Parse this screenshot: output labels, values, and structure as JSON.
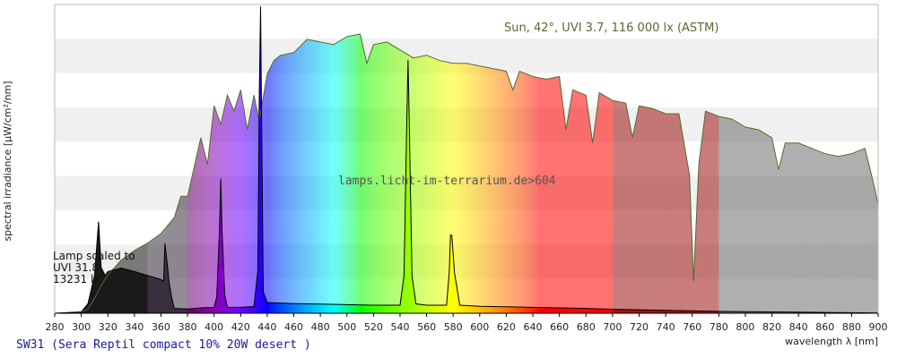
{
  "chart_data": {
    "type": "area",
    "xlabel": "wavelength λ [nm]",
    "ylabel": "spectral irradiance [µW/cm²/nm]",
    "xlim": [
      280,
      900
    ],
    "x_ticks": [
      280,
      300,
      320,
      340,
      360,
      380,
      400,
      420,
      440,
      460,
      480,
      500,
      520,
      540,
      560,
      580,
      600,
      620,
      640,
      660,
      680,
      700,
      720,
      740,
      760,
      780,
      800,
      820,
      840,
      860,
      880,
      900
    ],
    "y_axis_tick_labels": "none",
    "grid": "horizontal bands",
    "sun_label": "Sun, 42°, UVI 3.7, 116 000 lx (ASTM)",
    "sun_color": "#556b2f",
    "watermark": "lamps.licht-im-terrarium.de>604",
    "lamp_note": [
      "Lamp scaled to",
      "UVI 31.8",
      "13231 lx"
    ],
    "footer_title": "SW31 (Sera Reptil compact 10% 20W desert )",
    "footer_color": "#1a1aa0",
    "series": [
      {
        "name": "Sun, 42°, UVI 3.7, 116 000 lx (ASTM)",
        "role": "reference",
        "x": [
          280,
          300,
          305,
          310,
          315,
          320,
          330,
          340,
          350,
          360,
          370,
          375,
          380,
          390,
          395,
          400,
          405,
          410,
          415,
          420,
          425,
          430,
          434,
          440,
          445,
          450,
          460,
          470,
          480,
          490,
          500,
          510,
          515,
          520,
          530,
          540,
          550,
          560,
          570,
          580,
          590,
          600,
          610,
          620,
          625,
          630,
          640,
          650,
          660,
          665,
          670,
          680,
          685,
          690,
          700,
          710,
          715,
          720,
          730,
          740,
          750,
          758,
          761,
          765,
          770,
          780,
          790,
          800,
          810,
          820,
          825,
          830,
          840,
          850,
          860,
          870,
          880,
          890,
          895,
          900
        ],
        "values": [
          0,
          2,
          8,
          28,
          52,
          72,
          100,
          118,
          132,
          150,
          180,
          220,
          220,
          330,
          280,
          390,
          355,
          410,
          380,
          420,
          345,
          410,
          362,
          450,
          475,
          485,
          490,
          515,
          510,
          505,
          520,
          525,
          470,
          505,
          510,
          495,
          480,
          485,
          475,
          470,
          470,
          465,
          460,
          455,
          420,
          455,
          445,
          440,
          445,
          345,
          420,
          410,
          320,
          415,
          400,
          395,
          330,
          390,
          385,
          375,
          375,
          260,
          60,
          280,
          380,
          370,
          365,
          350,
          345,
          330,
          270,
          320,
          320,
          310,
          300,
          295,
          300,
          310,
          260,
          205
        ]
      },
      {
        "name": "SW31 (Sera Reptil compact 10% 20W desert )",
        "role": "lamp",
        "x": [
          280,
          300,
          305,
          310,
          313,
          315,
          318,
          320,
          330,
          340,
          350,
          360,
          362,
          363,
          365,
          366,
          368,
          370,
          380,
          390,
          400,
          402,
          404,
          405,
          406,
          408,
          410,
          420,
          430,
          433,
          434,
          435,
          436,
          437,
          440,
          450,
          460,
          480,
          500,
          520,
          540,
          543,
          545,
          546,
          547,
          549,
          552,
          560,
          575,
          577,
          578,
          579,
          581,
          585,
          600,
          620,
          640,
          660,
          680,
          700,
          720,
          740,
          760,
          780,
          800,
          820,
          840,
          860,
          880,
          900
        ],
        "values": [
          0,
          5,
          35,
          140,
          340,
          170,
          140,
          155,
          168,
          155,
          140,
          125,
          120,
          260,
          170,
          120,
          60,
          18,
          16,
          20,
          22,
          60,
          300,
          500,
          300,
          70,
          22,
          22,
          25,
          160,
          800,
          1140,
          600,
          80,
          40,
          38,
          36,
          34,
          32,
          30,
          30,
          140,
          700,
          940,
          700,
          140,
          35,
          30,
          30,
          150,
          290,
          290,
          150,
          30,
          26,
          24,
          22,
          20,
          18,
          15,
          13,
          11,
          9,
          7,
          6,
          5,
          4,
          3,
          2,
          1
        ]
      }
    ]
  }
}
